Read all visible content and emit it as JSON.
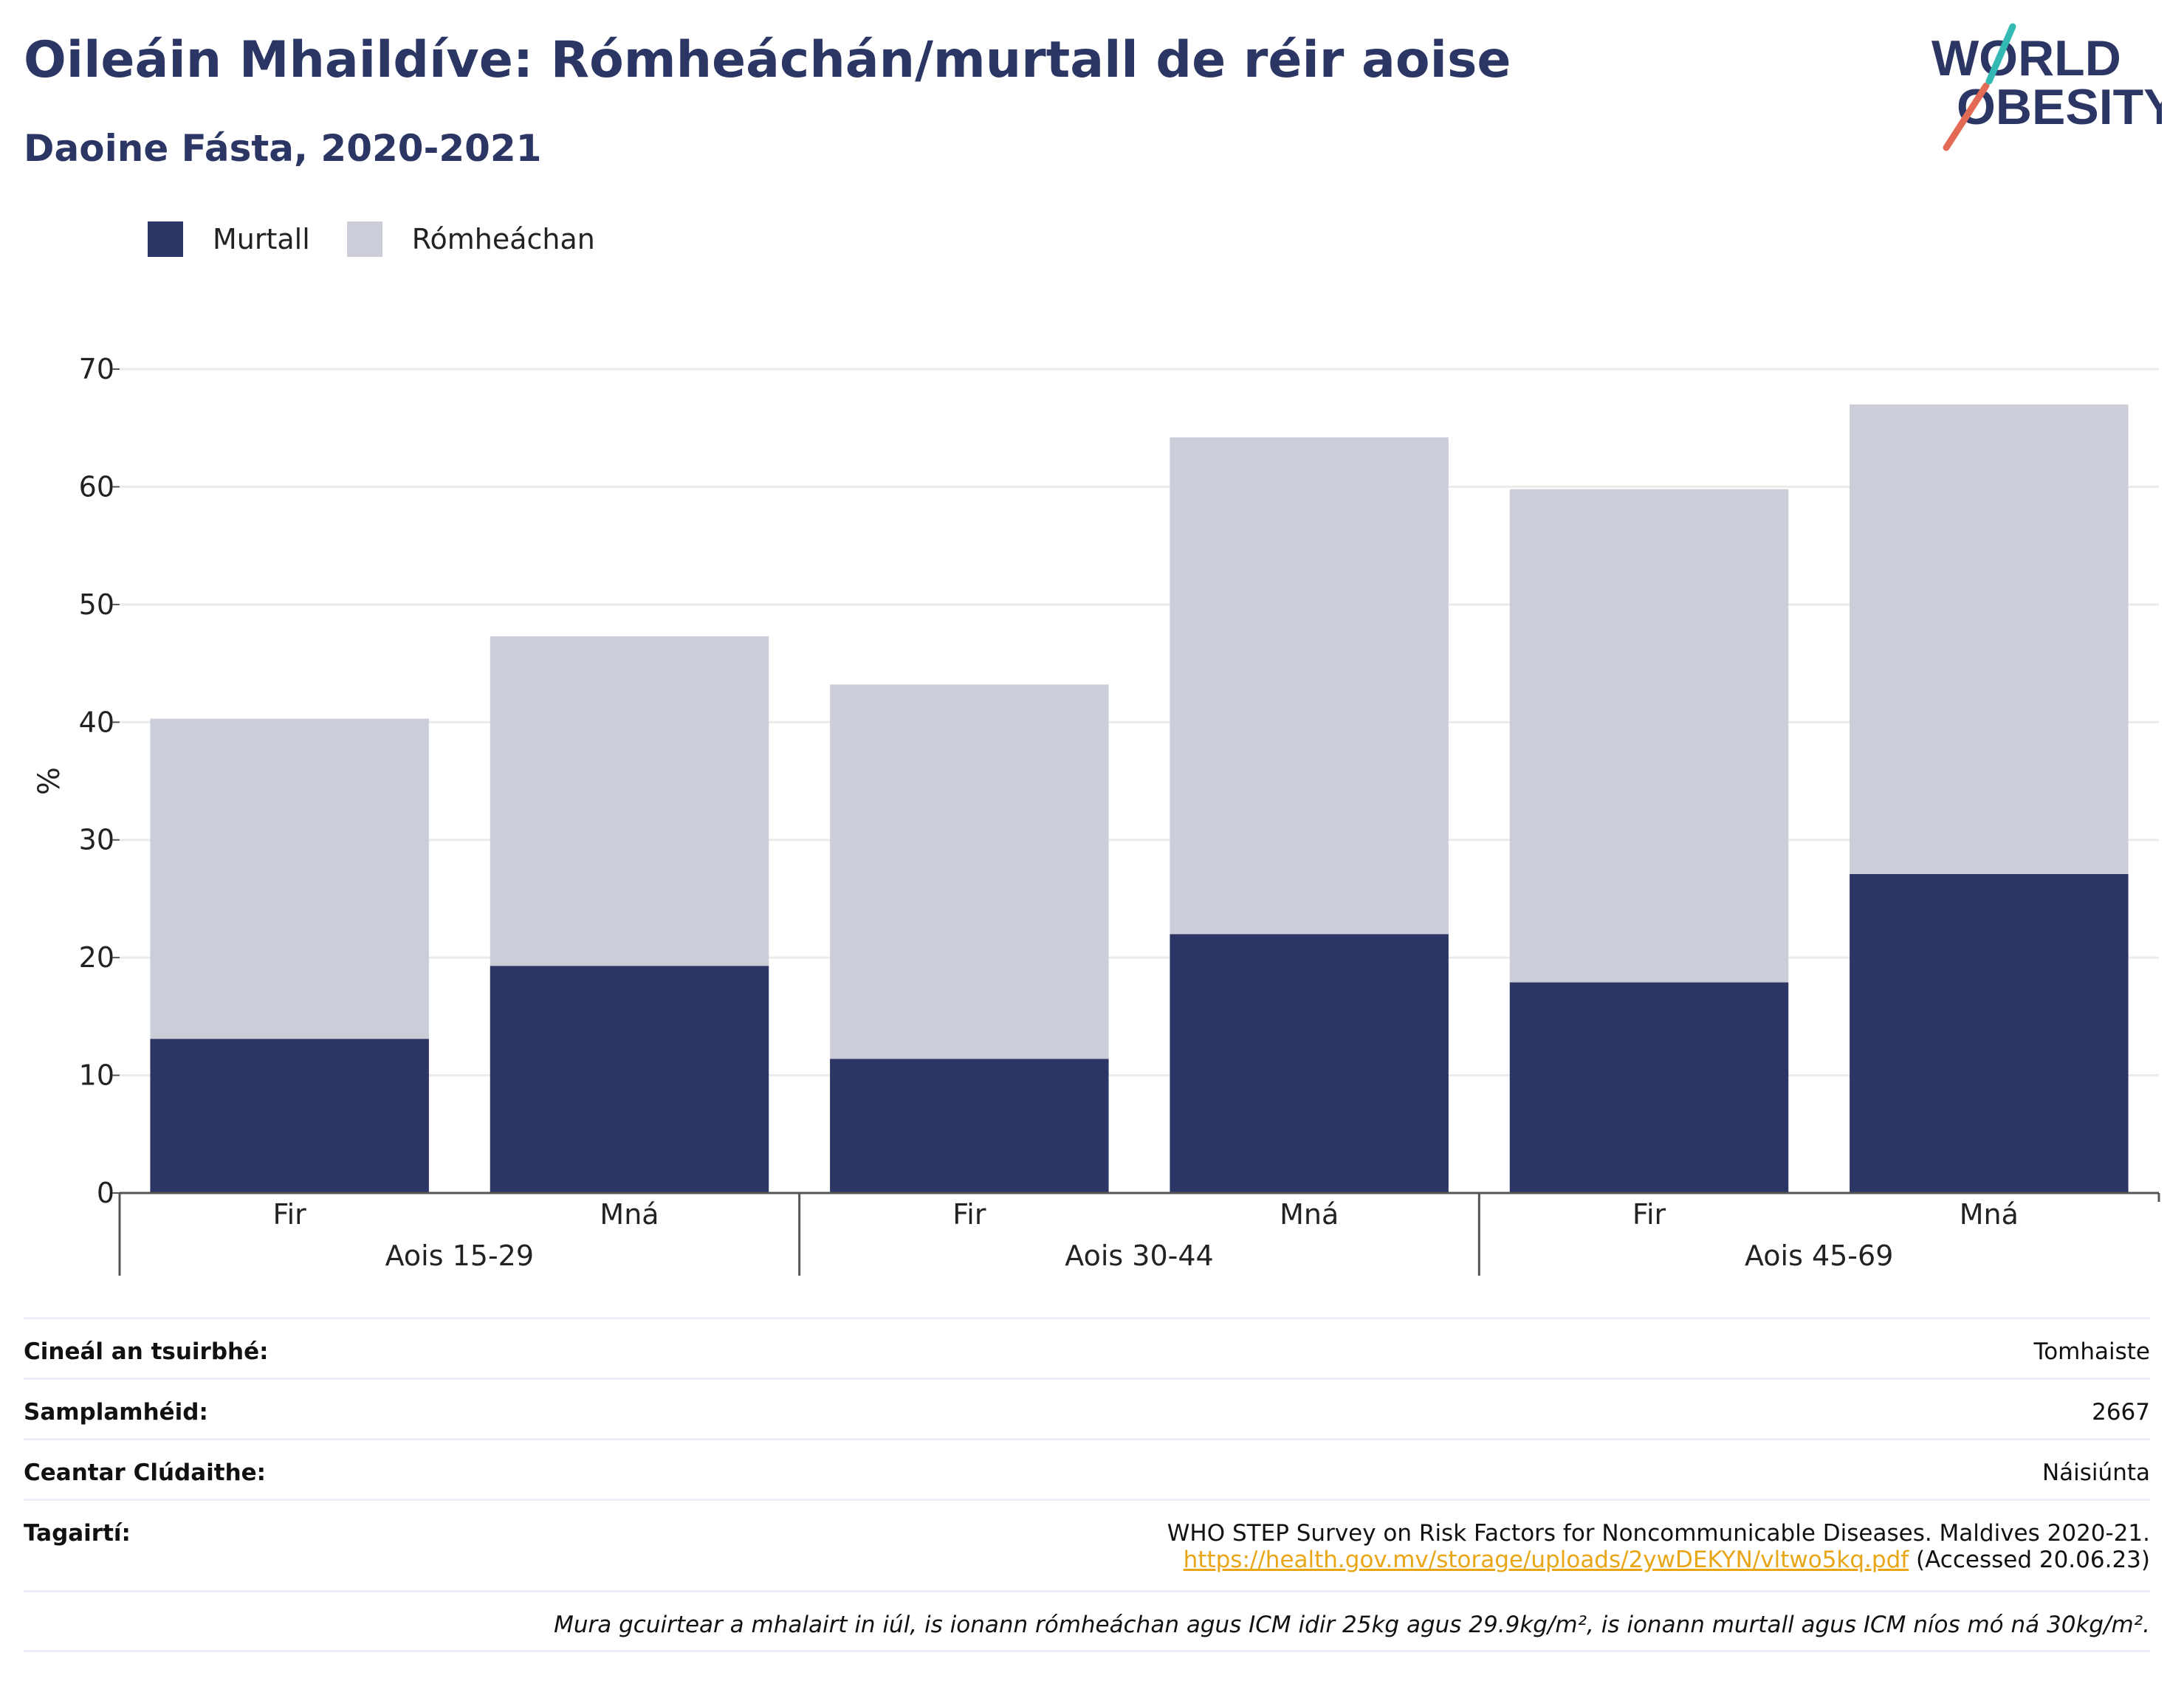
{
  "title": "Oileáin Mhaildíve: Rómheáchán/murtall de réir aoise",
  "subtitle": "Daoine Fásta, 2020-2021",
  "logo": {
    "line1": "WORLD",
    "line2": "OBESITY"
  },
  "chart_data": {
    "type": "bar",
    "stacked": true,
    "categories": [
      "Fir",
      "Mná",
      "Fir",
      "Mná",
      "Fir",
      "Mná"
    ],
    "groups": [
      {
        "label": "Aois 15-29",
        "categories": [
          "Fir",
          "Mná"
        ]
      },
      {
        "label": "Aois 30-44",
        "categories": [
          "Fir",
          "Mná"
        ]
      },
      {
        "label": "Aois 45-69",
        "categories": [
          "Fir",
          "Mná"
        ]
      }
    ],
    "series": [
      {
        "name": "Murtall",
        "color": "#2c3664",
        "values": [
          13.1,
          19.3,
          11.4,
          22.0,
          17.9,
          27.1
        ]
      },
      {
        "name": "Rómheáchan",
        "color": "#cbcdd8",
        "values": [
          27.2,
          28.0,
          31.8,
          42.2,
          41.9,
          39.9
        ]
      }
    ],
    "ylabel": "%",
    "ylim": [
      0,
      70
    ],
    "yticks": [
      0,
      10,
      20,
      30,
      40,
      50,
      60,
      70
    ],
    "grid": true,
    "legend_position": "top-left"
  },
  "info": {
    "survey_type_label": "Cineál an tsuirbhé:",
    "survey_type_value": "Tomhaiste",
    "sample_label": "Samplamhéid:",
    "sample_value": "2667",
    "area_label": "Ceantar Clúdaithe:",
    "area_value": "Náisiúnta",
    "refs_label": "Tagairtí:",
    "ref_text": "WHO STEP Survey on Risk Factors for Noncommunicable Diseases. Maldives 2020-21.",
    "ref_url": "https://health.gov.mv/storage/uploads/2ywDEKYN/vltwo5kq.pdf",
    "ref_accessed": "(Accessed 20.06.23)",
    "note": "Mura gcuirtear a mhalairt in iúl, is ionann rómheáchan agus ICM idir 25kg agus 29.9kg/m², is ionann murtall agus ICM níos mó ná 30kg/m²."
  }
}
